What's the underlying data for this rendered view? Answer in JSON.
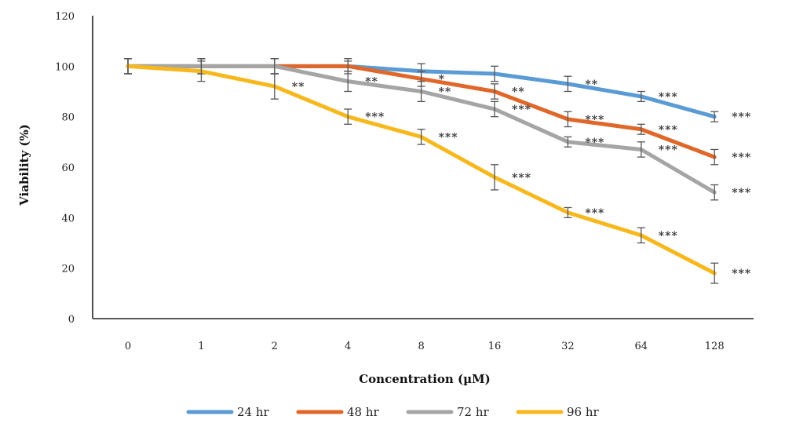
{
  "chart_data": {
    "type": "line",
    "xlabel": "Concentration (µM)",
    "ylabel": "Viability (%)",
    "categories": [
      "0",
      "1",
      "2",
      "4",
      "8",
      "16",
      "32",
      "64",
      "128"
    ],
    "ylim": [
      0,
      120
    ],
    "yticks": [
      0,
      20,
      40,
      60,
      80,
      100,
      120
    ],
    "grid": false,
    "legend_position": "bottom",
    "series": [
      {
        "name": "24 hr",
        "color": "#5b9bd5",
        "values": [
          100,
          100,
          100,
          100,
          98,
          97,
          93,
          88,
          80
        ],
        "errors": [
          3,
          3,
          3,
          2,
          3,
          3,
          3,
          2,
          2
        ],
        "significance": [
          "",
          "",
          "",
          "",
          "",
          "",
          "**",
          "***",
          "***"
        ]
      },
      {
        "name": "48 hr",
        "color": "#e0672a",
        "values": [
          100,
          100,
          100,
          100,
          95,
          90,
          79,
          75,
          64
        ],
        "errors": [
          3,
          3,
          3,
          3,
          3,
          3,
          3,
          2,
          3
        ],
        "significance": [
          "",
          "",
          "",
          "",
          "*",
          "**",
          "***",
          "***",
          "***"
        ]
      },
      {
        "name": "72 hr",
        "color": "#a5a5a5",
        "values": [
          100,
          100,
          100,
          94,
          90,
          83,
          70,
          67,
          50
        ],
        "errors": [
          3,
          3,
          3,
          4,
          4,
          3,
          2,
          3,
          3
        ],
        "significance": [
          "",
          "",
          "",
          "**",
          "**",
          "***",
          "***",
          "***",
          "***"
        ]
      },
      {
        "name": "96 hr",
        "color": "#f7b81e",
        "values": [
          100,
          98,
          92,
          80,
          72,
          56,
          42,
          33,
          18
        ],
        "errors": [
          3,
          4,
          5,
          3,
          3,
          5,
          2,
          3,
          4
        ],
        "significance": [
          "",
          "",
          "**",
          "***",
          "***",
          "***",
          "***",
          "***",
          "***"
        ]
      }
    ]
  }
}
